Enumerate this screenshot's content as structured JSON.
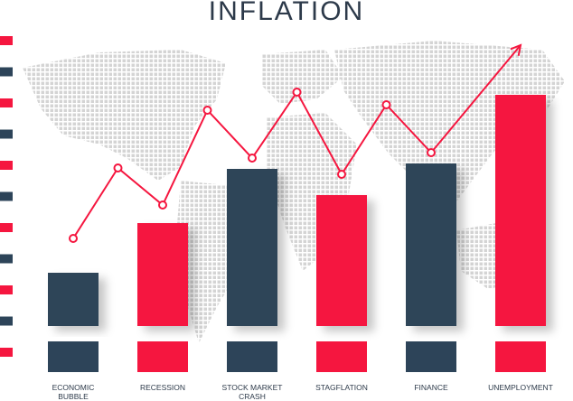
{
  "chart_data": {
    "type": "bar",
    "title": "INFLATION",
    "categories": [
      "ECONOMIC BUBBLE",
      "RECESSION",
      "STOCK MARKET CRASH",
      "STAGFLATION",
      "FINANCE",
      "UNEMPLOYMENT"
    ],
    "values": [
      59,
      114,
      174,
      145,
      180,
      256
    ],
    "colors": [
      "#2d4459",
      "#f5163f",
      "#2d4459",
      "#f5163f",
      "#2d4459",
      "#f5163f"
    ],
    "ylim": [
      0,
      320
    ],
    "line": {
      "color": "#f5163f",
      "x": [
        0,
        0.5,
        1,
        1.5,
        2,
        2.5,
        3,
        3.5,
        4,
        5
      ],
      "values": [
        97,
        175,
        134,
        239,
        186,
        259,
        168,
        245,
        192,
        311
      ]
    }
  }
}
